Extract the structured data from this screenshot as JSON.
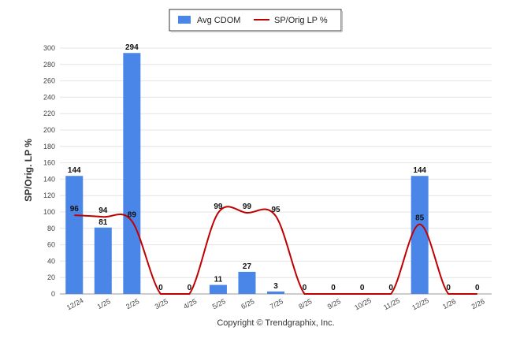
{
  "chart_data": {
    "type": "bar",
    "categories": [
      "12/24",
      "1/25",
      "2/25",
      "3/25",
      "4/25",
      "5/25",
      "6/25",
      "7/25",
      "8/25",
      "9/25",
      "10/25",
      "11/25",
      "12/25",
      "1/26",
      "2/26"
    ],
    "ylabel": "SP/Orig. LP %",
    "ylim": [
      0,
      300
    ],
    "yticks": [
      0,
      20,
      40,
      60,
      80,
      100,
      120,
      140,
      160,
      180,
      200,
      220,
      240,
      260,
      280,
      300
    ],
    "grid": true,
    "legend_position": "top-center",
    "series": [
      {
        "name": "Avg CDOM",
        "type": "bar",
        "color": "#4a86e8",
        "values": [
          144,
          81,
          294,
          0,
          0,
          11,
          27,
          3,
          0,
          0,
          0,
          0,
          144,
          0,
          0
        ]
      },
      {
        "name": "SP/Orig LP %",
        "type": "line",
        "color": "#c00000",
        "values": [
          96,
          94,
          89,
          0,
          0,
          99,
          99,
          95,
          0,
          0,
          0,
          0,
          85,
          0,
          0
        ]
      }
    ]
  },
  "credit": "Copyright © Trendgraphix, Inc."
}
